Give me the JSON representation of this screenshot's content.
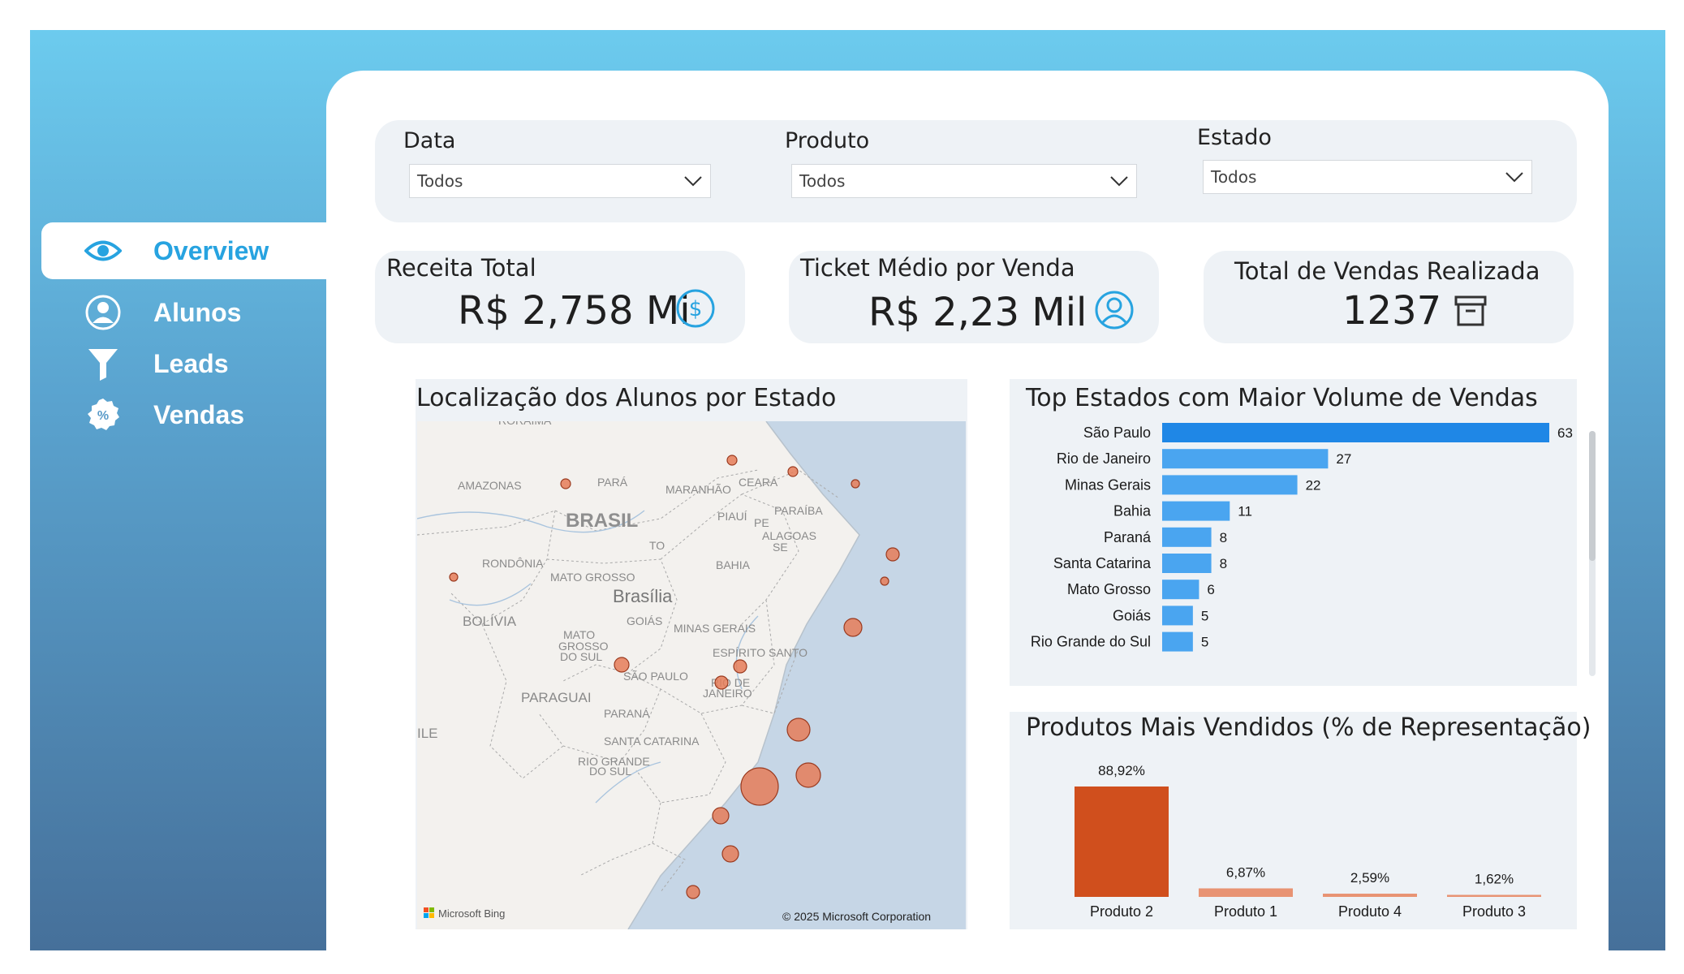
{
  "nav": {
    "items": [
      {
        "label": "Overview",
        "icon": "eye-icon",
        "active": true
      },
      {
        "label": "Alunos",
        "icon": "user-icon",
        "active": false
      },
      {
        "label": "Leads",
        "icon": "funnel-icon",
        "active": false
      },
      {
        "label": "Vendas",
        "icon": "percent-badge-icon",
        "active": false
      }
    ]
  },
  "filters": {
    "data": {
      "title": "Data",
      "value": "Todos"
    },
    "produto": {
      "title": "Produto",
      "value": "Todos"
    },
    "estado": {
      "title": "Estado",
      "value": "Todos"
    }
  },
  "kpis": {
    "receita": {
      "title": "Receita Total",
      "value": "R$ 2,758 Mi",
      "icon": "dollar-circle-icon"
    },
    "ticket": {
      "title": "Ticket Médio por Venda",
      "value": "R$ 2,23 Mil",
      "icon": "user-circle-icon"
    },
    "vendas": {
      "title": "Total de Vendas Realizada",
      "value": "1237",
      "icon": "archive-box-icon"
    }
  },
  "map": {
    "title": "Localização dos Alunos por Estado",
    "attribution": "© 2025 Microsoft Corporation",
    "provider": "Microsoft Bing",
    "labels": {
      "roraima": "RORAIMA",
      "amazonas": "AMAZONAS",
      "para": "PARÁ",
      "maranhao": "MARANHÃO",
      "ceara": "CEARÁ",
      "brasil": "BRASIL",
      "piaui": "PIAUÍ",
      "paraiba": "PARAÍBA",
      "pe": "PE",
      "alagoas": "ALAGOAS",
      "se": "SE",
      "to": "TO",
      "rondonia": "RONDÔNIA",
      "bahia": "BAHIA",
      "mato_grosso": "MATO GROSSO",
      "brasilia": "Brasília",
      "goias": "GOIÁS",
      "bolivia": "BOLÍVIA",
      "minas_gerais": "MINAS GERAIS",
      "mato_grosso_sul_1": "MATO",
      "mato_grosso_sul_2": "GROSSO",
      "mato_grosso_sul_3": "DO SUL",
      "espirito_santo": "ESPÍRITO SANTO",
      "sao_paulo": "SÃO PAULO",
      "rio_1": "RIO DE",
      "rio_2": "JANEIRO",
      "paraguai": "PARAGUAI",
      "parana": "PARANÁ",
      "ile": "ILE",
      "santa_catarina": "SANTA CATARINA",
      "rio_grande_1": "RIO GRANDE",
      "rio_grande_2": "DO SUL"
    }
  },
  "colors": {
    "bar_blue": "#4aa5f0",
    "bar_blue_top": "#1f87e6",
    "product_main": "#d04f1d",
    "product_other": "#e89373",
    "bubble": "#e57c58",
    "icon_blue": "#27a3e0"
  },
  "chart_data": [
    {
      "type": "bar",
      "orientation": "horizontal",
      "title": "Top Estados com Maior Volume de Vendas",
      "categories": [
        "São Paulo",
        "Rio de Janeiro",
        "Minas Gerais",
        "Bahia",
        "Paraná",
        "Santa Catarina",
        "Mato Grosso",
        "Goiás",
        "Rio Grande do Sul"
      ],
      "values": [
        63,
        27,
        22,
        11,
        8,
        8,
        6,
        5,
        5
      ]
    },
    {
      "type": "bar",
      "title": "Produtos Mais Vendidos (% de Representação)",
      "categories": [
        "Produto 2",
        "Produto 1",
        "Produto 4",
        "Produto 3"
      ],
      "values": [
        88.92,
        6.87,
        2.59,
        1.62
      ],
      "value_labels": [
        "88,92%",
        "6,87%",
        "2,59%",
        "1,62%"
      ]
    }
  ]
}
